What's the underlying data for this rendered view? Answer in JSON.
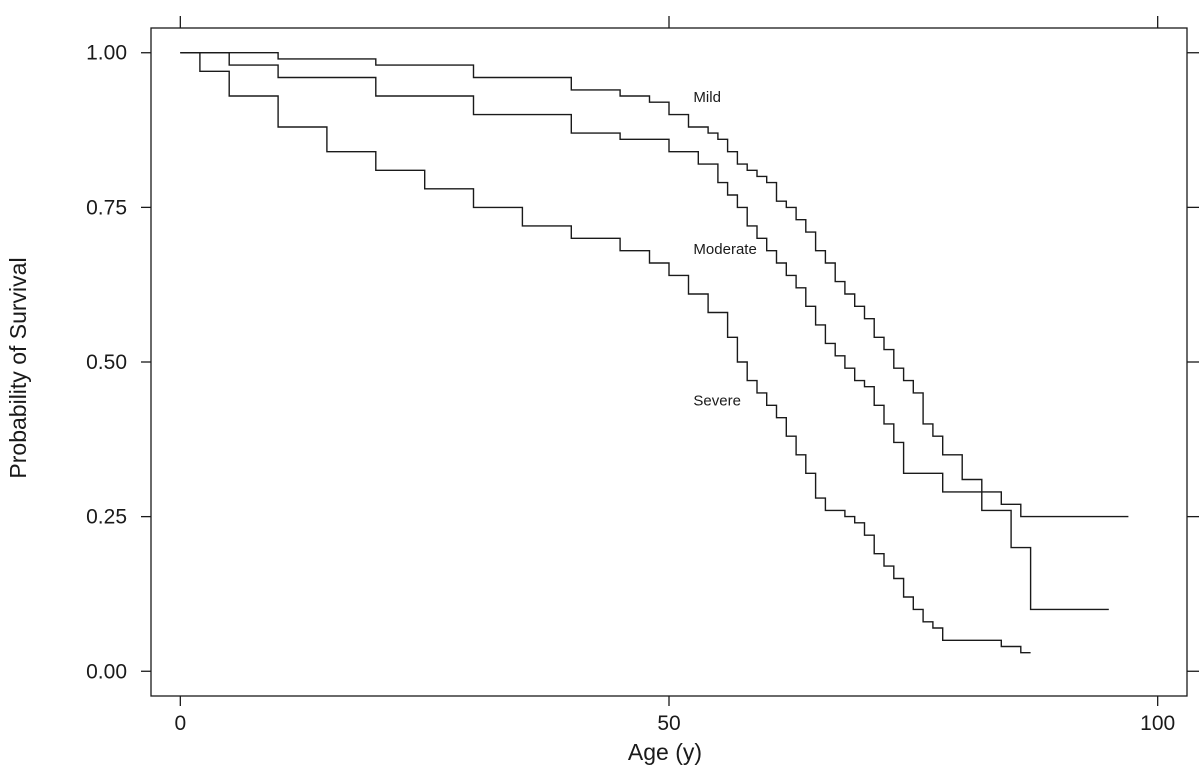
{
  "chart_data": {
    "type": "line",
    "step": true,
    "title": "",
    "xlabel": "Age (y)",
    "ylabel": "Probability of Survival",
    "xlim": [
      -3,
      103
    ],
    "ylim": [
      -0.04,
      1.04
    ],
    "x_ticks": [
      0,
      50,
      100
    ],
    "x_tick_labels": [
      "0",
      "50",
      "100"
    ],
    "y_ticks": [
      0.0,
      0.25,
      0.5,
      0.75,
      1.0
    ],
    "y_tick_labels": [
      "0.00",
      "0.25",
      "0.50",
      "0.75",
      "1.00"
    ],
    "grid": false,
    "legend": "none",
    "series": [
      {
        "name": "Mild",
        "x": [
          0,
          10,
          20,
          30,
          40,
          45,
          48,
          50,
          52,
          54,
          55,
          56,
          57,
          58,
          59,
          60,
          61,
          62,
          63,
          64,
          65,
          66,
          67,
          68,
          69,
          70,
          71,
          72,
          73,
          74,
          75,
          76,
          77,
          78,
          80,
          82,
          84,
          86,
          88,
          90,
          97
        ],
        "y": [
          1.0,
          0.99,
          0.98,
          0.96,
          0.94,
          0.93,
          0.92,
          0.9,
          0.88,
          0.87,
          0.86,
          0.84,
          0.82,
          0.81,
          0.8,
          0.79,
          0.76,
          0.75,
          0.73,
          0.71,
          0.68,
          0.66,
          0.63,
          0.61,
          0.59,
          0.57,
          0.54,
          0.52,
          0.49,
          0.47,
          0.45,
          0.4,
          0.38,
          0.35,
          0.31,
          0.29,
          0.27,
          0.25,
          0.25,
          0.25,
          0.25
        ]
      },
      {
        "name": "Moderate",
        "x": [
          0,
          5,
          10,
          20,
          30,
          40,
          45,
          50,
          53,
          55,
          56,
          57,
          58,
          59,
          60,
          61,
          62,
          63,
          64,
          65,
          66,
          67,
          68,
          69,
          70,
          71,
          72,
          73,
          74,
          75,
          78,
          80,
          82,
          85,
          87,
          95
        ],
        "y": [
          1.0,
          0.98,
          0.96,
          0.93,
          0.9,
          0.87,
          0.86,
          0.84,
          0.82,
          0.79,
          0.77,
          0.75,
          0.72,
          0.7,
          0.68,
          0.66,
          0.64,
          0.62,
          0.59,
          0.56,
          0.53,
          0.51,
          0.49,
          0.47,
          0.46,
          0.43,
          0.4,
          0.37,
          0.32,
          0.32,
          0.29,
          0.29,
          0.26,
          0.2,
          0.1,
          0.1
        ]
      },
      {
        "name": "Severe",
        "x": [
          0,
          2,
          5,
          10,
          15,
          20,
          25,
          30,
          35,
          40,
          45,
          48,
          50,
          52,
          54,
          56,
          57,
          58,
          59,
          60,
          61,
          62,
          63,
          64,
          65,
          66,
          67,
          68,
          69,
          70,
          71,
          72,
          73,
          74,
          75,
          76,
          77,
          78,
          79,
          80,
          82,
          84,
          85,
          86,
          87
        ],
        "y": [
          1.0,
          0.97,
          0.93,
          0.88,
          0.84,
          0.81,
          0.78,
          0.75,
          0.72,
          0.7,
          0.68,
          0.66,
          0.64,
          0.61,
          0.58,
          0.54,
          0.5,
          0.47,
          0.45,
          0.43,
          0.41,
          0.38,
          0.35,
          0.32,
          0.28,
          0.26,
          0.26,
          0.25,
          0.24,
          0.22,
          0.19,
          0.17,
          0.15,
          0.12,
          0.1,
          0.08,
          0.07,
          0.05,
          0.05,
          0.05,
          0.05,
          0.04,
          0.04,
          0.03,
          0.03
        ]
      }
    ],
    "annotations": [
      {
        "text": "Mild",
        "x": 52.5,
        "y": 0.92
      },
      {
        "text": "Moderate",
        "x": 52.5,
        "y": 0.675
      },
      {
        "text": "Severe",
        "x": 52.5,
        "y": 0.43
      }
    ]
  }
}
